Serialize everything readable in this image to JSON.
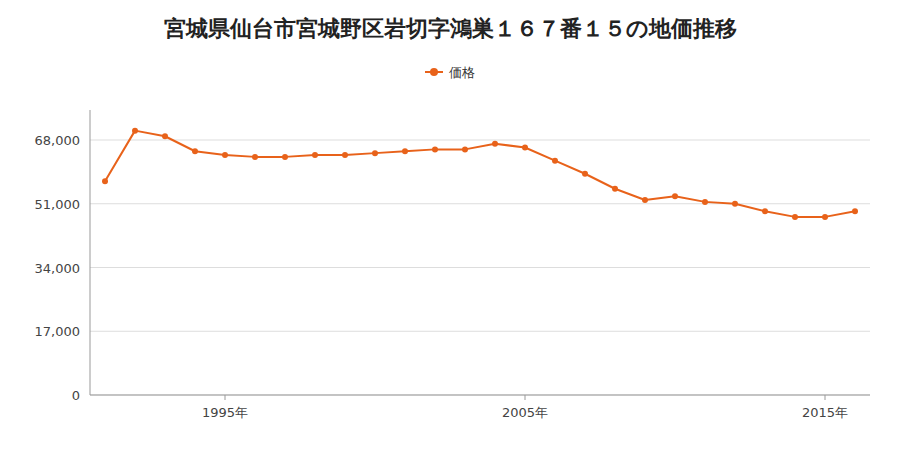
{
  "chart_data": {
    "type": "line",
    "title": "宮城県仙台市宮城野区岩切字鴻巣１６７番１５の地価推移",
    "x": [
      1991,
      1992,
      1993,
      1994,
      1995,
      1996,
      1997,
      1998,
      1999,
      2000,
      2001,
      2002,
      2003,
      2004,
      2005,
      2006,
      2007,
      2008,
      2009,
      2010,
      2011,
      2012,
      2013,
      2014,
      2015,
      2016
    ],
    "series": [
      {
        "name": "価格",
        "color": "#e8621a",
        "marker": "circle",
        "values": [
          57000,
          70500,
          69000,
          65000,
          64000,
          63500,
          63500,
          64000,
          64000,
          64500,
          65000,
          65500,
          65500,
          67000,
          66000,
          62500,
          59000,
          55000,
          52000,
          53000,
          51500,
          51000,
          49000,
          47500,
          47500,
          49000
        ]
      }
    ],
    "xlim": [
      1990.5,
      2016.5
    ],
    "xticks": [
      {
        "value": 1995,
        "label": "1995年"
      },
      {
        "value": 2005,
        "label": "2005年"
      },
      {
        "value": 2015,
        "label": "2015年"
      }
    ],
    "ylim": [
      0,
      76000
    ],
    "yticks": [
      0,
      {
        "value": 17000,
        "label": "17,000"
      },
      {
        "value": 34000,
        "label": "34,000"
      },
      {
        "value": 51000,
        "label": "51,000"
      },
      {
        "value": 68000,
        "label": "68,000"
      }
    ],
    "grid": true,
    "legend": "top"
  }
}
